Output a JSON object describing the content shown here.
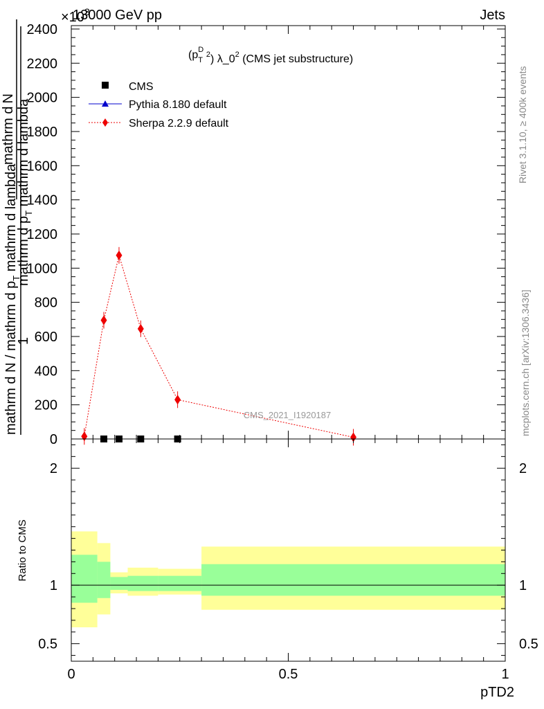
{
  "header": {
    "left": "13000 GeV pp",
    "right": "Jets",
    "exponent": "×10",
    "exponent_power": "3"
  },
  "side_labels": {
    "rivet": "Rivet 3.1.10, ≥ 400k events",
    "mcplots": "mcplots.cern.ch [arXiv:1306.3436]"
  },
  "chart_data": [
    {
      "type": "line",
      "title_parts": {
        "p": "(p",
        "sup_d": "D",
        "sub_t": "T",
        "sq": "2",
        "lambda": ") λ_0",
        "sq2": "2",
        "rest": " (CMS jet substructure)"
      },
      "ylabel": {
        "one": "1",
        "num_left": "mathrm d N / mathrm d p",
        "num_sub": "T",
        "num_right": " mathrm d lambda",
        "dnum": "mathrm d",
        "dnum2": "N",
        "den_left": "mathrm d p",
        "den_sub": "T",
        "den_right": " mathrm d lambda"
      },
      "yticks": [
        "0",
        "200",
        "400",
        "600",
        "800",
        "1000",
        "1200",
        "1400",
        "1600",
        "1800",
        "2000",
        "2200",
        "2400"
      ],
      "ylim": [
        0,
        2420
      ],
      "xlim": [
        0,
        1
      ],
      "watermark": "CMS_2021_I1920187",
      "legend": {
        "position": "top-left",
        "entries": [
          "CMS",
          "Pythia 8.180 default",
          "Sherpa 2.2.9 default"
        ]
      },
      "series": [
        {
          "name": "CMS",
          "color": "#000000",
          "marker": "square",
          "x": [
            0.075,
            0.11,
            0.16,
            0.245
          ],
          "y": [
            0,
            0,
            0,
            0
          ]
        },
        {
          "name": "Pythia 8.180 default",
          "color": "#0000cc",
          "marker": "triangle",
          "x": [],
          "y": []
        },
        {
          "name": "Sherpa 2.2.9 default",
          "color": "#ee0000",
          "marker": "diamond",
          "x": [
            0.03,
            0.075,
            0.11,
            0.16,
            0.245,
            0.65
          ],
          "y": [
            15,
            695,
            1075,
            645,
            230,
            10
          ]
        }
      ]
    },
    {
      "type": "area",
      "ylabel": "Ratio to CMS",
      "xlabel": "pTD2",
      "xlim": [
        0,
        1
      ],
      "ylim": [
        0.35,
        2.25
      ],
      "yticks": [
        "0.5",
        "1",
        "2"
      ],
      "xticks": [
        "0",
        "0.5",
        "1"
      ],
      "reference_line": 1,
      "bands": {
        "bins": [
          0,
          0.06,
          0.09,
          0.13,
          0.2,
          0.3,
          1.0
        ],
        "yellow_low": [
          0.64,
          0.75,
          0.93,
          0.91,
          0.92,
          0.79
        ],
        "yellow_high": [
          1.46,
          1.36,
          1.11,
          1.15,
          1.14,
          1.33
        ],
        "green_low": [
          0.85,
          0.89,
          0.96,
          0.95,
          0.95,
          0.91
        ],
        "green_high": [
          1.26,
          1.2,
          1.07,
          1.08,
          1.08,
          1.18
        ],
        "yellow_color": "#ffff99",
        "green_color": "#99ff99"
      }
    }
  ]
}
